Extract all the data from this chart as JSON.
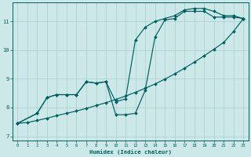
{
  "xlabel": "Humidex (Indice chaleur)",
  "bg_color": "#cce8e8",
  "grid_color": "#aacece",
  "line_color": "#006060",
  "xlim": [
    -0.5,
    23.5
  ],
  "ylim": [
    6.85,
    11.65
  ],
  "xticks": [
    0,
    1,
    2,
    3,
    4,
    5,
    6,
    7,
    8,
    9,
    10,
    11,
    12,
    13,
    14,
    15,
    16,
    17,
    18,
    19,
    20,
    21,
    22,
    23
  ],
  "yticks": [
    7,
    8,
    9,
    10,
    11
  ],
  "line1_x": [
    0,
    1,
    2,
    3,
    4,
    5,
    6,
    7,
    8,
    9,
    10,
    11,
    12,
    13,
    14,
    15,
    16,
    17,
    18,
    19,
    20,
    21,
    22,
    23
  ],
  "line1_y": [
    7.45,
    7.48,
    7.55,
    7.63,
    7.72,
    7.8,
    7.88,
    7.97,
    8.07,
    8.17,
    8.28,
    8.4,
    8.53,
    8.67,
    8.82,
    8.99,
    9.17,
    9.37,
    9.58,
    9.8,
    10.03,
    10.27,
    10.65,
    11.1
  ],
  "line2_x": [
    0,
    2,
    3,
    4,
    5,
    6,
    7,
    8,
    9,
    10,
    11,
    12,
    13,
    14,
    15,
    16,
    17,
    18,
    19,
    20,
    21,
    22,
    23
  ],
  "line2_y": [
    7.45,
    7.8,
    8.35,
    8.45,
    8.45,
    8.45,
    8.9,
    8.85,
    8.9,
    7.75,
    7.75,
    7.8,
    8.6,
    10.45,
    11.05,
    11.1,
    11.35,
    11.35,
    11.35,
    11.15,
    11.15,
    11.15,
    11.1
  ],
  "line3_x": [
    0,
    2,
    3,
    4,
    5,
    6,
    7,
    8,
    9,
    10,
    11,
    12,
    13,
    14,
    15,
    16,
    17,
    18,
    19,
    20,
    21,
    22,
    23
  ],
  "line3_y": [
    7.45,
    7.8,
    8.35,
    8.45,
    8.45,
    8.45,
    8.9,
    8.85,
    8.9,
    8.2,
    8.3,
    10.35,
    10.8,
    11.0,
    11.1,
    11.2,
    11.4,
    11.45,
    11.45,
    11.35,
    11.2,
    11.2,
    11.1
  ]
}
